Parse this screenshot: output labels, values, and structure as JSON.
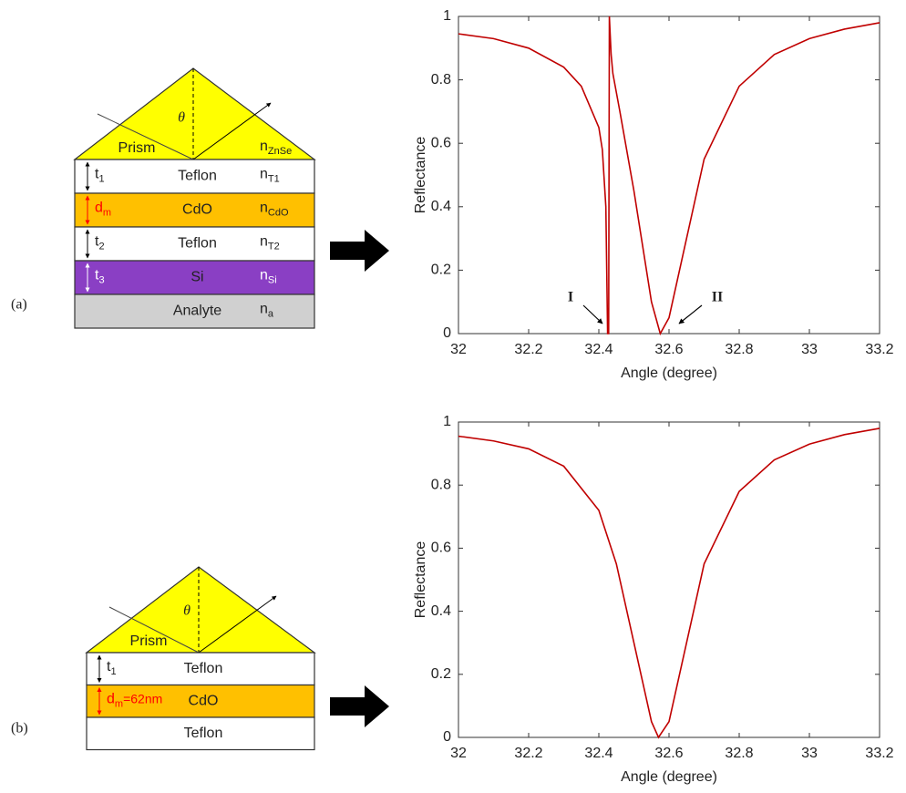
{
  "chart_data": [
    {
      "type": "line",
      "xlabel": "Angle (degree)",
      "ylabel": "Reflectance",
      "color": "#c00000",
      "x": [
        32,
        32.1,
        32.2,
        32.3,
        32.35,
        32.4,
        32.41,
        32.42,
        32.425,
        32.428,
        32.43,
        32.435,
        32.44,
        32.46,
        32.5,
        32.55,
        32.575,
        32.6,
        32.65,
        32.7,
        32.8,
        32.9,
        33,
        33.1,
        33.2
      ],
      "values": [
        0.945,
        0.93,
        0.9,
        0.84,
        0.78,
        0.65,
        0.58,
        0.4,
        0,
        0,
        1,
        0.88,
        0.82,
        0.7,
        0.45,
        0.1,
        0,
        0.05,
        0.3,
        0.55,
        0.78,
        0.88,
        0.93,
        0.96,
        0.98
      ],
      "xlim": [
        32,
        33.2
      ],
      "xticks": [
        32,
        32.2,
        32.4,
        32.6,
        32.8,
        33,
        33.2
      ],
      "ylim": [
        0,
        1
      ],
      "yticks": [
        0,
        0.2,
        0.4,
        0.6,
        0.8,
        1
      ],
      "annotations": [
        "I",
        "II"
      ]
    },
    {
      "type": "line",
      "xlabel": "Angle (degree)",
      "ylabel": "Reflectance",
      "color": "#c00000",
      "x": [
        32,
        32.1,
        32.2,
        32.3,
        32.4,
        32.45,
        32.5,
        32.55,
        32.57,
        32.6,
        32.65,
        32.7,
        32.8,
        32.9,
        33,
        33.1,
        33.2
      ],
      "values": [
        0.955,
        0.94,
        0.915,
        0.86,
        0.72,
        0.55,
        0.3,
        0.05,
        0,
        0.05,
        0.3,
        0.55,
        0.78,
        0.88,
        0.93,
        0.96,
        0.98
      ],
      "xlim": [
        32,
        33.2
      ],
      "xticks": [
        32,
        32.2,
        32.4,
        32.6,
        32.8,
        33,
        33.2
      ],
      "ylim": [
        0,
        1
      ],
      "yticks": [
        0,
        0.2,
        0.4,
        0.6,
        0.8,
        1
      ]
    }
  ],
  "diagrams": [
    {
      "label": "(a)",
      "prism": {
        "name": "Prism",
        "angle": "θ",
        "index": {
          "base": "n",
          "sub": "ZnSe"
        },
        "color": "#ffff00"
      },
      "layers": [
        {
          "thickness": {
            "base": "t",
            "sub": "1"
          },
          "name": "Teflon",
          "index": {
            "base": "n",
            "sub": "T1"
          },
          "color": "#ffffff",
          "mark_color": "#000000"
        },
        {
          "thickness": {
            "base": "d",
            "sub": "m"
          },
          "name": "CdO",
          "index": {
            "base": "n",
            "sub": "CdO"
          },
          "color": "#ffc000",
          "mark_color": "#ff0000"
        },
        {
          "thickness": {
            "base": "t",
            "sub": "2"
          },
          "name": "Teflon",
          "index": {
            "base": "n",
            "sub": "T2"
          },
          "color": "#ffffff",
          "mark_color": "#000000"
        },
        {
          "thickness": {
            "base": "t",
            "sub": "3"
          },
          "name": "Si",
          "index": {
            "base": "n",
            "sub": "Si"
          },
          "color": "#8a3fc4",
          "mark_color": "#ffffff"
        },
        {
          "name": "Analyte",
          "index": {
            "base": "n",
            "sub": "a"
          },
          "color": "#d0d0d0"
        }
      ]
    },
    {
      "label": "(b)",
      "prism": {
        "name": "Prism",
        "angle": "θ",
        "color": "#ffff00"
      },
      "layers": [
        {
          "thickness": {
            "base": "t",
            "sub": "1"
          },
          "name": "Teflon",
          "color": "#ffffff",
          "mark_color": "#000000"
        },
        {
          "thickness": {
            "base": "d",
            "sub": "m",
            "tail": "=62nm"
          },
          "name": "CdO",
          "color": "#ffc000",
          "mark_color": "#ff0000"
        },
        {
          "name": "Teflon",
          "color": "#ffffff"
        }
      ]
    }
  ]
}
